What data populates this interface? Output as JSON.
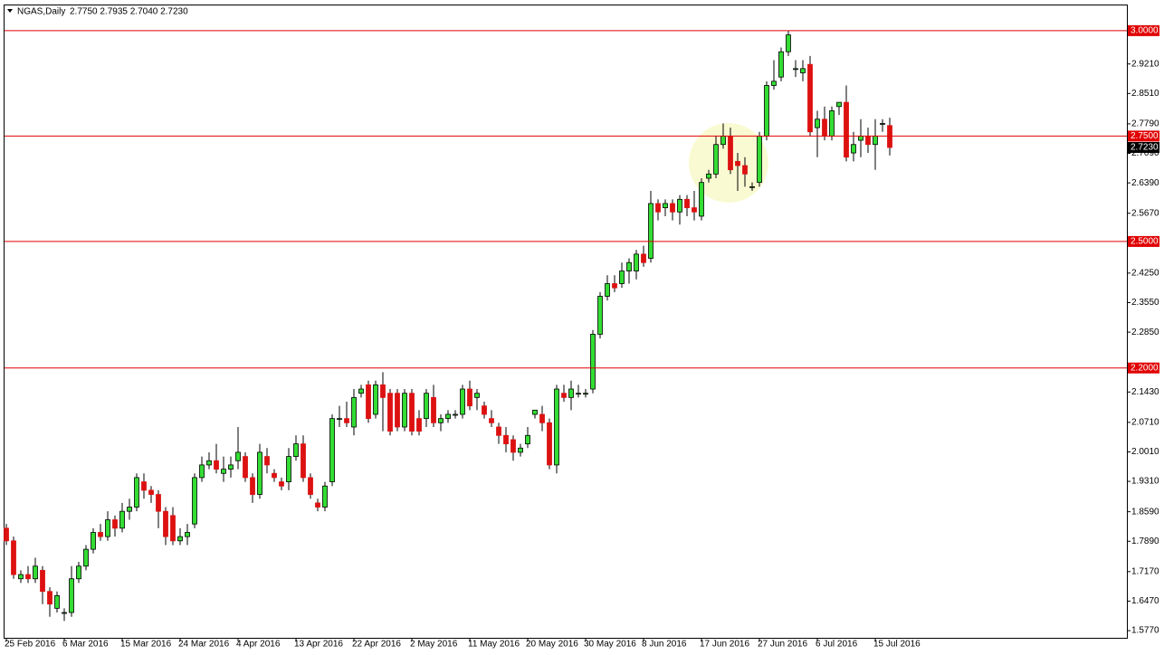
{
  "chart_data": {
    "type": "candlestick",
    "title": "NGAS,Daily",
    "subtitle": "2.7750 2.7935 2.7040 2.7230",
    "categories": [
      "25 Feb 2016",
      null,
      null,
      null,
      null,
      null,
      null,
      null,
      "6 Mar 2016",
      null,
      null,
      null,
      null,
      null,
      null,
      null,
      "15 Mar 2016",
      null,
      null,
      null,
      null,
      null,
      null,
      null,
      "24 Mar 2016",
      null,
      null,
      null,
      null,
      null,
      null,
      null,
      "4 Apr 2016",
      null,
      null,
      null,
      null,
      null,
      null,
      null,
      "13 Apr 2016",
      null,
      null,
      null,
      null,
      null,
      null,
      null,
      "22 Apr 2016",
      null,
      null,
      null,
      null,
      null,
      null,
      null,
      "2 May 2016",
      null,
      null,
      null,
      null,
      null,
      null,
      null,
      "11 May 2016",
      null,
      null,
      null,
      null,
      null,
      null,
      null,
      "20 May 2016",
      null,
      null,
      null,
      null,
      null,
      null,
      null,
      "30 May 2016",
      null,
      null,
      null,
      null,
      null,
      null,
      null,
      "8 Jun 2016",
      null,
      null,
      null,
      null,
      null,
      null,
      null,
      "17 Jun 2016",
      null,
      null,
      null,
      null,
      null,
      null,
      null,
      "27 Jun 2016",
      null,
      null,
      null,
      null,
      null,
      null,
      null,
      "6 Jul 2016",
      null,
      null,
      null,
      null,
      null,
      null,
      null,
      "15 Jul 2016",
      null,
      null
    ],
    "open": [
      1.82,
      1.79,
      1.7,
      1.71,
      1.7,
      1.72,
      1.67,
      1.63,
      1.62,
      1.62,
      1.7,
      1.73,
      1.77,
      1.81,
      1.8,
      1.84,
      1.82,
      1.86,
      1.87,
      1.93,
      1.91,
      1.9,
      1.86,
      1.85,
      1.79,
      1.8,
      1.83,
      1.94,
      1.97,
      1.98,
      1.95,
      1.96,
      1.98,
      1.99,
      1.94,
      1.9,
      1.99,
      1.95,
      1.93,
      1.93,
      1.99,
      2.02,
      1.94,
      1.88,
      1.87,
      1.93,
      2.08,
      2.08,
      2.06,
      2.14,
      2.16,
      2.09,
      2.16,
      2.14,
      2.14,
      2.06,
      2.14,
      2.08,
      2.08,
      2.13,
      2.07,
      2.08,
      2.09,
      2.09,
      2.15,
      2.13,
      2.11,
      2.08,
      2.06,
      2.04,
      2.03,
      2.0,
      2.02,
      2.09,
      2.09,
      2.07,
      1.97,
      2.14,
      2.13,
      2.14,
      2.14,
      2.15,
      2.28,
      2.37,
      2.4,
      2.4,
      2.43,
      2.43,
      2.47,
      2.46,
      2.59,
      2.58,
      2.59,
      2.57,
      2.6,
      2.58,
      2.56,
      2.65,
      2.66,
      2.73,
      2.75,
      2.69,
      2.68,
      2.63,
      2.64,
      2.75,
      2.87,
      2.89,
      2.95,
      2.91,
      2.9,
      2.92,
      2.77,
      2.79,
      2.75,
      2.82,
      2.83,
      2.71,
      2.74,
      2.75,
      2.73,
      2.78,
      2.775
    ],
    "high": [
      1.83,
      1.8,
      1.72,
      1.73,
      1.75,
      1.73,
      1.68,
      1.67,
      1.63,
      1.73,
      1.74,
      1.78,
      1.82,
      1.83,
      1.86,
      1.85,
      1.88,
      1.89,
      1.95,
      1.95,
      1.92,
      1.91,
      1.87,
      1.87,
      1.82,
      1.83,
      1.95,
      1.99,
      2.0,
      2.02,
      1.99,
      1.99,
      2.06,
      2.0,
      1.95,
      2.02,
      2.01,
      1.96,
      1.94,
      2.01,
      2.04,
      2.04,
      1.95,
      1.89,
      1.93,
      2.09,
      2.11,
      2.12,
      2.15,
      2.16,
      2.17,
      2.17,
      2.19,
      2.15,
      2.15,
      2.15,
      2.15,
      2.1,
      2.15,
      2.16,
      2.09,
      2.1,
      2.1,
      2.16,
      2.17,
      2.15,
      2.12,
      2.1,
      2.07,
      2.06,
      2.04,
      2.02,
      2.06,
      2.1,
      2.11,
      2.08,
      2.16,
      2.16,
      2.17,
      2.16,
      2.15,
      2.29,
      2.38,
      2.42,
      2.42,
      2.45,
      2.46,
      2.48,
      2.49,
      2.62,
      2.6,
      2.6,
      2.6,
      2.61,
      2.61,
      2.62,
      2.65,
      2.67,
      2.75,
      2.78,
      2.77,
      2.71,
      2.7,
      2.64,
      2.76,
      2.88,
      2.93,
      2.96,
      3.0,
      2.93,
      2.93,
      2.94,
      2.81,
      2.82,
      2.82,
      2.83,
      2.87,
      2.76,
      2.79,
      2.77,
      2.79,
      2.79,
      2.7935
    ],
    "low": [
      1.78,
      1.7,
      1.69,
      1.69,
      1.69,
      1.64,
      1.61,
      1.62,
      1.6,
      1.61,
      1.69,
      1.72,
      1.76,
      1.79,
      1.79,
      1.8,
      1.81,
      1.84,
      1.86,
      1.89,
      1.88,
      1.82,
      1.78,
      1.78,
      1.78,
      1.78,
      1.82,
      1.93,
      1.96,
      1.95,
      1.93,
      1.94,
      1.96,
      1.93,
      1.88,
      1.89,
      1.95,
      1.93,
      1.91,
      1.91,
      1.98,
      1.93,
      1.89,
      1.86,
      1.86,
      1.92,
      2.06,
      2.06,
      2.04,
      2.13,
      2.07,
      2.08,
      2.05,
      2.04,
      2.05,
      2.05,
      2.04,
      2.04,
      2.06,
      2.06,
      2.05,
      2.07,
      2.08,
      2.08,
      2.1,
      2.1,
      2.08,
      2.06,
      2.02,
      2.0,
      1.98,
      1.99,
      2.01,
      2.08,
      2.05,
      1.96,
      1.95,
      2.12,
      2.1,
      2.13,
      2.13,
      2.14,
      2.27,
      2.36,
      2.38,
      2.39,
      2.4,
      2.41,
      2.44,
      2.45,
      2.55,
      2.56,
      2.55,
      2.54,
      2.56,
      2.55,
      2.55,
      2.64,
      2.65,
      2.72,
      2.66,
      2.62,
      2.63,
      2.62,
      2.63,
      2.74,
      2.86,
      2.88,
      2.94,
      2.89,
      2.88,
      2.75,
      2.7,
      2.74,
      2.74,
      2.8,
      2.69,
      2.69,
      2.7,
      2.71,
      2.67,
      2.76,
      2.704
    ],
    "close": [
      1.79,
      1.71,
      1.71,
      1.7,
      1.73,
      1.67,
      1.64,
      1.66,
      1.62,
      1.7,
      1.73,
      1.77,
      1.81,
      1.8,
      1.84,
      1.82,
      1.86,
      1.87,
      1.94,
      1.91,
      1.9,
      1.86,
      1.8,
      1.79,
      1.8,
      1.81,
      1.94,
      1.97,
      1.98,
      1.96,
      1.96,
      1.97,
      2.0,
      1.94,
      1.9,
      2.0,
      1.97,
      1.94,
      1.92,
      1.99,
      2.02,
      1.94,
      1.9,
      1.87,
      1.92,
      2.08,
      2.08,
      2.07,
      2.13,
      2.15,
      2.08,
      2.16,
      2.13,
      2.05,
      2.06,
      2.14,
      2.05,
      2.05,
      2.14,
      2.07,
      2.08,
      2.09,
      2.09,
      2.15,
      2.11,
      2.14,
      2.09,
      2.07,
      2.04,
      2.02,
      2.0,
      2.01,
      2.04,
      2.1,
      2.07,
      1.97,
      2.15,
      2.13,
      2.15,
      2.14,
      2.14,
      2.28,
      2.37,
      2.4,
      2.39,
      2.43,
      2.45,
      2.47,
      2.45,
      2.59,
      2.57,
      2.59,
      2.57,
      2.6,
      2.58,
      2.57,
      2.64,
      2.66,
      2.73,
      2.75,
      2.67,
      2.68,
      2.66,
      2.63,
      2.75,
      2.87,
      2.88,
      2.95,
      2.99,
      2.91,
      2.91,
      2.76,
      2.79,
      2.75,
      2.81,
      2.83,
      2.7,
      2.73,
      2.75,
      2.73,
      2.75,
      2.78,
      2.723
    ],
    "up_color": "#33dd33",
    "down_color": "#dd1111",
    "ylim": [
      1.56,
      3.062
    ],
    "yticks": [
      {
        "value": 2.921,
        "label": "2.9210"
      },
      {
        "value": 2.851,
        "label": "2.8510"
      },
      {
        "value": 2.779,
        "label": "2.7790"
      },
      {
        "value": 2.709,
        "label": "2.7090"
      },
      {
        "value": 2.639,
        "label": "2.6390"
      },
      {
        "value": 2.567,
        "label": "2.5670"
      },
      {
        "value": 2.425,
        "label": "2.4250"
      },
      {
        "value": 2.355,
        "label": "2.3550"
      },
      {
        "value": 2.285,
        "label": "2.2850"
      },
      {
        "value": 2.143,
        "label": "2.1430"
      },
      {
        "value": 2.071,
        "label": "2.0710"
      },
      {
        "value": 2.001,
        "label": "2.0010"
      },
      {
        "value": 1.931,
        "label": "1.9310"
      },
      {
        "value": 1.859,
        "label": "1.8590"
      },
      {
        "value": 1.789,
        "label": "1.7890"
      },
      {
        "value": 1.717,
        "label": "1.7170"
      },
      {
        "value": 1.647,
        "label": "1.6470"
      },
      {
        "value": 1.577,
        "label": "1.5770"
      }
    ],
    "levels": [
      {
        "value": 3.0,
        "label": "3.0000"
      },
      {
        "value": 2.75,
        "label": "2.7500"
      },
      {
        "value": 2.5,
        "label": "2.5000"
      },
      {
        "value": 2.2,
        "label": "2.2000"
      }
    ],
    "level_color": "#e00000",
    "last_price": {
      "value": 2.723,
      "label": "2.7230"
    },
    "grid": false
  }
}
